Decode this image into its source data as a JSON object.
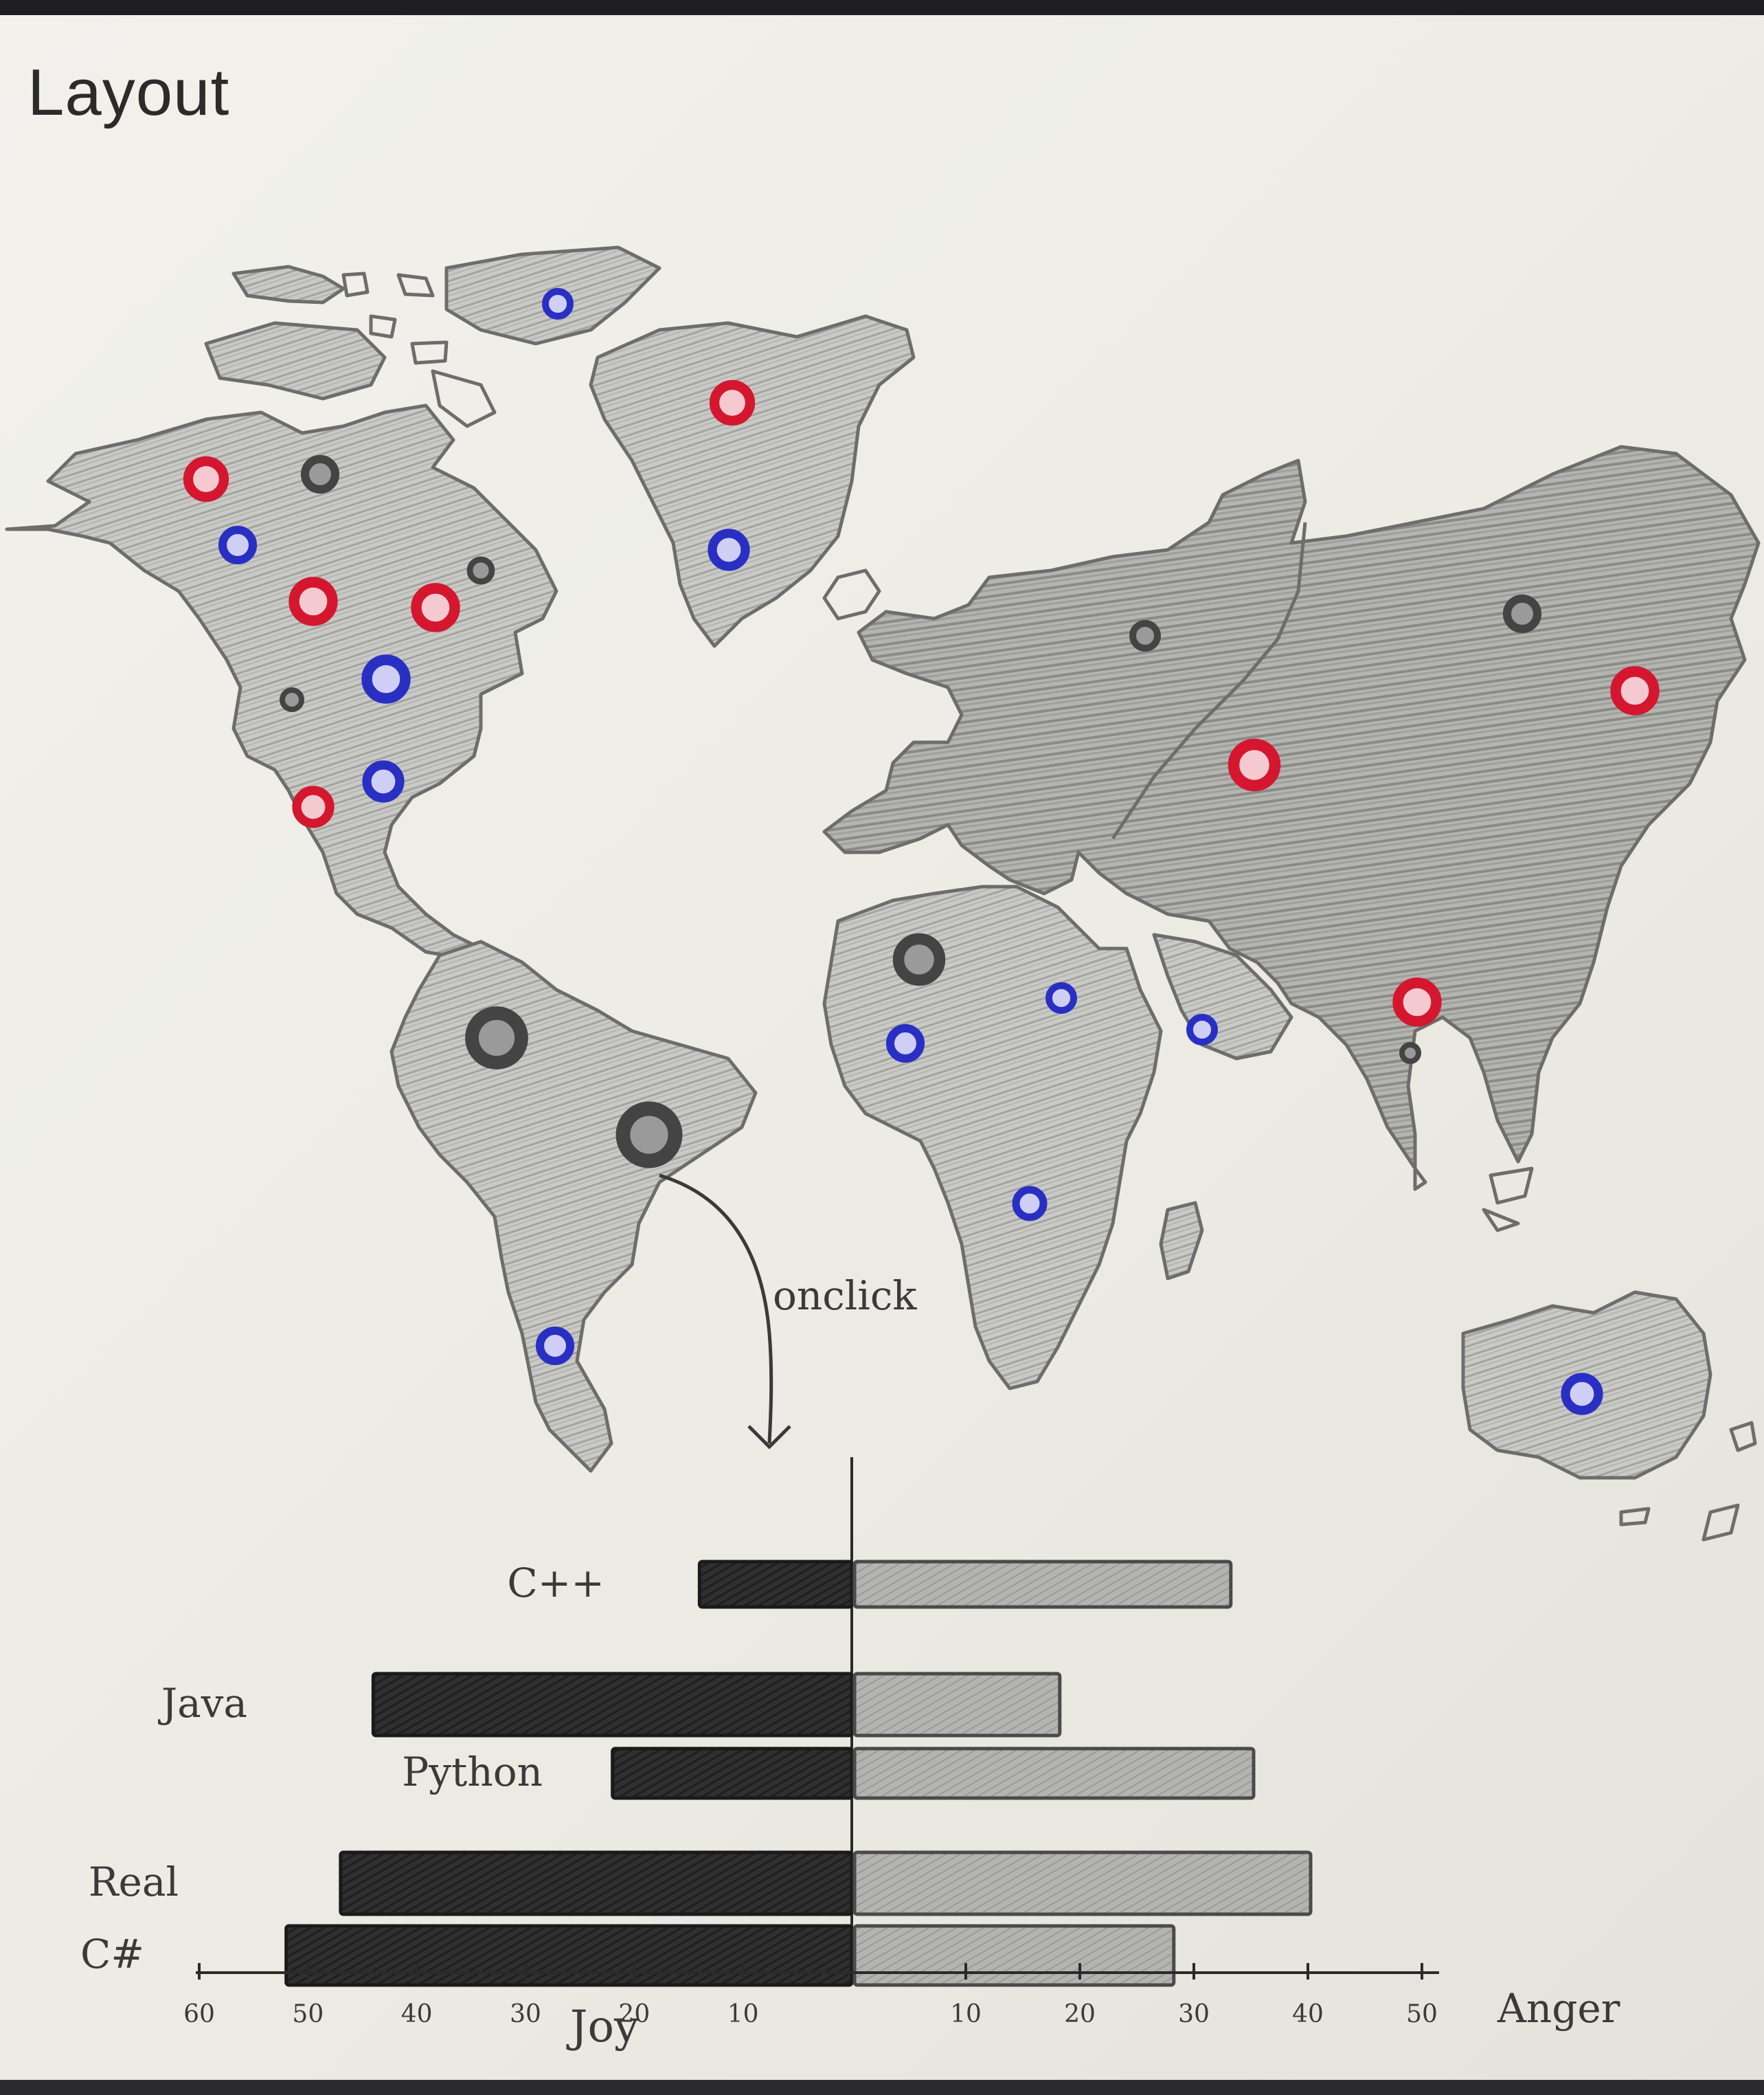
{
  "page": {
    "title": "Layout"
  },
  "map": {
    "marker_colors": {
      "red": "#d4172f",
      "blue": "#2a2fc4",
      "dark": "#444444"
    },
    "annotation": "onclick"
  },
  "chart_data": {
    "type": "bar",
    "subtype": "diverging-horizontal",
    "categories": [
      "C++",
      "Java",
      "Python",
      "Real",
      "C#"
    ],
    "series": [
      {
        "name": "Joy",
        "values": [
          14,
          44,
          22,
          47,
          52
        ]
      },
      {
        "name": "Anger",
        "values": [
          33,
          18,
          35,
          40,
          28
        ]
      }
    ],
    "xlabel_left": "Joy",
    "xlabel_right": "Anger",
    "left_ticks": [
      "60",
      "50",
      "40",
      "30",
      "20",
      "10"
    ],
    "right_ticks": [
      "10",
      "20",
      "30",
      "40",
      "50"
    ],
    "xlim_left": [
      0,
      60
    ],
    "xlim_right": [
      0,
      50
    ],
    "colors": {
      "joy": "#2f2f2f",
      "anger": "#a9a9a9"
    }
  }
}
